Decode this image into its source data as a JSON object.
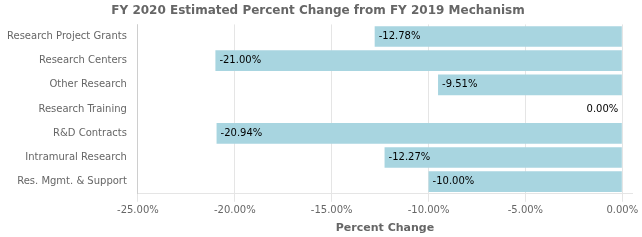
{
  "chart_data": {
    "type": "bar",
    "orientation": "horizontal",
    "title": "FY 2020 Estimated Percent Change from FY 2019 Mechanism",
    "xlabel": "Percent Change",
    "categories": [
      "Res. Mgmt. & Support",
      "Intramural Research",
      "R&D Contracts",
      "Research Training",
      "Other Research",
      "Research Centers",
      "Research Project Grants"
    ],
    "values": [
      -10.0,
      -12.27,
      -20.94,
      0.0,
      -9.51,
      -21.0,
      -12.78
    ],
    "value_labels": [
      "-10.00%",
      "-12.27%",
      "-20.94%",
      "0.00%",
      "-9.51%",
      "-21.00%",
      "-12.78%"
    ],
    "data_labels": true,
    "color": "#a8d5e0",
    "xlim": [
      -25,
      0.5
    ],
    "xticks": [
      {
        "value": -25,
        "label": "-25.00%"
      },
      {
        "value": -20,
        "label": "-20.00%"
      },
      {
        "value": -15,
        "label": "-15.00%"
      },
      {
        "value": -10,
        "label": "-10.00%"
      },
      {
        "value": -5,
        "label": "-5.00%"
      },
      {
        "value": 0,
        "label": "0.00%"
      }
    ],
    "grid": true
  }
}
